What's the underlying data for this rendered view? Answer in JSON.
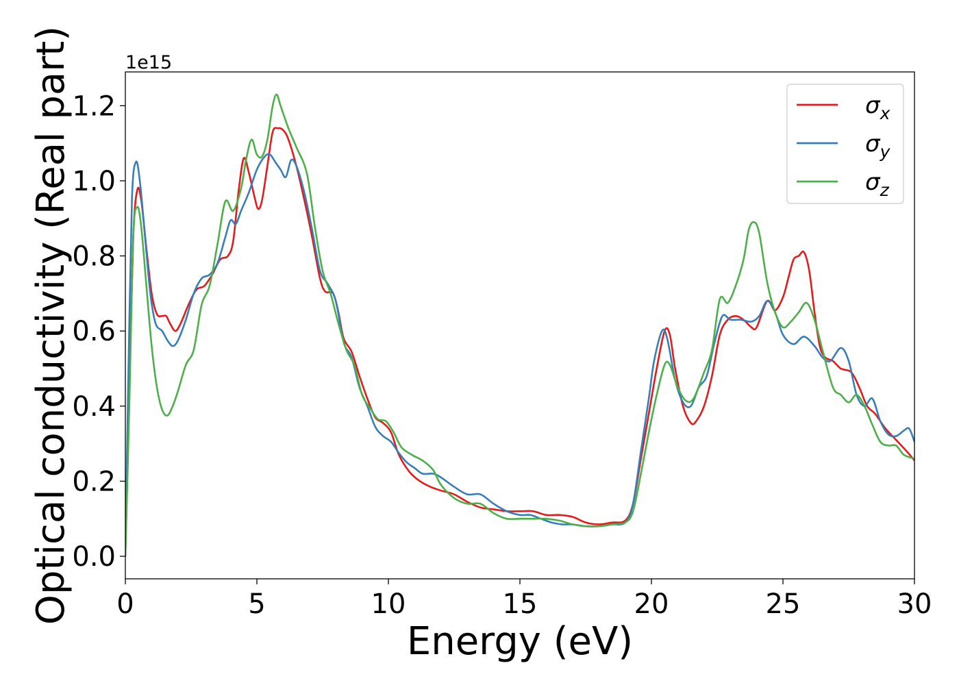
{
  "chart_data": {
    "type": "line",
    "title": "",
    "xlabel": "Energy (eV)",
    "ylabel": "Optical conductivity (Real part)",
    "y_offset_label": "1e15",
    "y_scale_factor": 1000000000000000.0,
    "xlim": [
      0,
      30
    ],
    "ylim": [
      -0.06,
      1.29
    ],
    "x_ticks": [
      "0",
      "5",
      "10",
      "15",
      "20",
      "25",
      "30"
    ],
    "y_ticks": [
      "0.0",
      "0.2",
      "0.4",
      "0.6",
      "0.8",
      "1.0",
      "1.2"
    ],
    "grid": false,
    "legend_position": "top-right",
    "series": [
      {
        "name": "σx",
        "legend_symbol": "σ",
        "legend_sub": "x",
        "color": "#e41a1c",
        "points": [
          [
            0,
            0
          ],
          [
            0.15,
            0.45
          ],
          [
            0.3,
            0.85
          ],
          [
            0.45,
            0.975
          ],
          [
            0.6,
            0.95
          ],
          [
            0.8,
            0.82
          ],
          [
            1.0,
            0.7
          ],
          [
            1.2,
            0.645
          ],
          [
            1.4,
            0.64
          ],
          [
            1.55,
            0.64
          ],
          [
            1.7,
            0.62
          ],
          [
            1.9,
            0.6
          ],
          [
            2.1,
            0.62
          ],
          [
            2.4,
            0.67
          ],
          [
            2.7,
            0.71
          ],
          [
            3.0,
            0.72
          ],
          [
            3.3,
            0.75
          ],
          [
            3.6,
            0.79
          ],
          [
            3.9,
            0.8
          ],
          [
            4.1,
            0.84
          ],
          [
            4.3,
            0.97
          ],
          [
            4.5,
            1.06
          ],
          [
            4.7,
            1.02
          ],
          [
            4.9,
            0.96
          ],
          [
            5.05,
            0.925
          ],
          [
            5.2,
            0.95
          ],
          [
            5.4,
            1.04
          ],
          [
            5.6,
            1.13
          ],
          [
            5.8,
            1.14
          ],
          [
            6.0,
            1.135
          ],
          [
            6.2,
            1.11
          ],
          [
            6.5,
            1.04
          ],
          [
            6.8,
            0.95
          ],
          [
            7.1,
            0.85
          ],
          [
            7.4,
            0.74
          ],
          [
            7.6,
            0.705
          ],
          [
            7.9,
            0.7
          ],
          [
            8.1,
            0.65
          ],
          [
            8.3,
            0.58
          ],
          [
            8.6,
            0.545
          ],
          [
            8.9,
            0.48
          ],
          [
            9.2,
            0.42
          ],
          [
            9.5,
            0.37
          ],
          [
            9.8,
            0.355
          ],
          [
            10.1,
            0.33
          ],
          [
            10.4,
            0.27
          ],
          [
            10.8,
            0.225
          ],
          [
            11.2,
            0.2
          ],
          [
            11.6,
            0.185
          ],
          [
            12.0,
            0.175
          ],
          [
            12.5,
            0.165
          ],
          [
            13.0,
            0.145
          ],
          [
            13.5,
            0.13
          ],
          [
            14.0,
            0.125
          ],
          [
            14.5,
            0.12
          ],
          [
            15.0,
            0.12
          ],
          [
            15.5,
            0.12
          ],
          [
            16.0,
            0.11
          ],
          [
            16.5,
            0.11
          ],
          [
            17.0,
            0.105
          ],
          [
            17.5,
            0.09
          ],
          [
            18.0,
            0.085
          ],
          [
            18.5,
            0.09
          ],
          [
            19.0,
            0.095
          ],
          [
            19.3,
            0.14
          ],
          [
            19.6,
            0.26
          ],
          [
            19.9,
            0.38
          ],
          [
            20.2,
            0.5
          ],
          [
            20.5,
            0.6
          ],
          [
            20.7,
            0.59
          ],
          [
            20.9,
            0.5
          ],
          [
            21.2,
            0.4
          ],
          [
            21.5,
            0.355
          ],
          [
            21.7,
            0.36
          ],
          [
            22.0,
            0.4
          ],
          [
            22.3,
            0.48
          ],
          [
            22.6,
            0.59
          ],
          [
            22.9,
            0.63
          ],
          [
            23.2,
            0.64
          ],
          [
            23.5,
            0.63
          ],
          [
            23.8,
            0.61
          ],
          [
            24.0,
            0.61
          ],
          [
            24.4,
            0.68
          ],
          [
            24.7,
            0.655
          ],
          [
            25.0,
            0.69
          ],
          [
            25.2,
            0.74
          ],
          [
            25.4,
            0.79
          ],
          [
            25.6,
            0.8
          ],
          [
            25.8,
            0.81
          ],
          [
            26.0,
            0.76
          ],
          [
            26.2,
            0.65
          ],
          [
            26.4,
            0.56
          ],
          [
            26.6,
            0.53
          ],
          [
            26.9,
            0.52
          ],
          [
            27.2,
            0.5
          ],
          [
            27.6,
            0.49
          ],
          [
            27.9,
            0.45
          ],
          [
            28.2,
            0.4
          ],
          [
            28.5,
            0.38
          ],
          [
            28.9,
            0.34
          ],
          [
            29.3,
            0.31
          ],
          [
            29.7,
            0.28
          ],
          [
            30.0,
            0.255
          ]
        ]
      },
      {
        "name": "σy",
        "legend_symbol": "σ",
        "legend_sub": "y",
        "color": "#377eb8",
        "points": [
          [
            0,
            0
          ],
          [
            0.12,
            0.5
          ],
          [
            0.25,
            0.95
          ],
          [
            0.4,
            1.05
          ],
          [
            0.55,
            1.0
          ],
          [
            0.75,
            0.85
          ],
          [
            0.95,
            0.7
          ],
          [
            1.15,
            0.62
          ],
          [
            1.4,
            0.6
          ],
          [
            1.6,
            0.575
          ],
          [
            1.8,
            0.56
          ],
          [
            2.0,
            0.575
          ],
          [
            2.3,
            0.63
          ],
          [
            2.6,
            0.7
          ],
          [
            2.9,
            0.74
          ],
          [
            3.2,
            0.75
          ],
          [
            3.5,
            0.78
          ],
          [
            3.8,
            0.85
          ],
          [
            4.0,
            0.895
          ],
          [
            4.2,
            0.885
          ],
          [
            4.4,
            0.92
          ],
          [
            4.7,
            0.97
          ],
          [
            5.0,
            1.03
          ],
          [
            5.3,
            1.065
          ],
          [
            5.5,
            1.07
          ],
          [
            5.7,
            1.05
          ],
          [
            5.9,
            1.03
          ],
          [
            6.1,
            1.01
          ],
          [
            6.3,
            1.055
          ],
          [
            6.5,
            1.04
          ],
          [
            6.8,
            0.97
          ],
          [
            7.1,
            0.87
          ],
          [
            7.4,
            0.76
          ],
          [
            7.7,
            0.725
          ],
          [
            8.0,
            0.68
          ],
          [
            8.3,
            0.57
          ],
          [
            8.6,
            0.53
          ],
          [
            8.9,
            0.45
          ],
          [
            9.2,
            0.4
          ],
          [
            9.5,
            0.345
          ],
          [
            9.8,
            0.32
          ],
          [
            10.1,
            0.305
          ],
          [
            10.4,
            0.275
          ],
          [
            10.7,
            0.25
          ],
          [
            11.0,
            0.235
          ],
          [
            11.3,
            0.22
          ],
          [
            11.7,
            0.22
          ],
          [
            12.0,
            0.21
          ],
          [
            12.5,
            0.185
          ],
          [
            13.0,
            0.165
          ],
          [
            13.5,
            0.165
          ],
          [
            14.0,
            0.14
          ],
          [
            14.5,
            0.12
          ],
          [
            15.0,
            0.11
          ],
          [
            15.4,
            0.11
          ],
          [
            15.8,
            0.1
          ],
          [
            16.2,
            0.09
          ],
          [
            16.6,
            0.085
          ],
          [
            17.0,
            0.085
          ],
          [
            17.5,
            0.08
          ],
          [
            18.0,
            0.08
          ],
          [
            18.5,
            0.085
          ],
          [
            19.0,
            0.09
          ],
          [
            19.3,
            0.14
          ],
          [
            19.6,
            0.28
          ],
          [
            19.9,
            0.42
          ],
          [
            20.1,
            0.52
          ],
          [
            20.4,
            0.6
          ],
          [
            20.6,
            0.58
          ],
          [
            20.9,
            0.47
          ],
          [
            21.2,
            0.41
          ],
          [
            21.5,
            0.4
          ],
          [
            21.8,
            0.45
          ],
          [
            22.1,
            0.48
          ],
          [
            22.4,
            0.57
          ],
          [
            22.7,
            0.64
          ],
          [
            23.0,
            0.63
          ],
          [
            23.4,
            0.63
          ],
          [
            23.8,
            0.625
          ],
          [
            24.1,
            0.64
          ],
          [
            24.4,
            0.68
          ],
          [
            24.7,
            0.65
          ],
          [
            25.0,
            0.59
          ],
          [
            25.4,
            0.565
          ],
          [
            25.8,
            0.585
          ],
          [
            26.2,
            0.56
          ],
          [
            26.5,
            0.53
          ],
          [
            26.8,
            0.52
          ],
          [
            27.2,
            0.555
          ],
          [
            27.5,
            0.52
          ],
          [
            27.8,
            0.43
          ],
          [
            28.1,
            0.4
          ],
          [
            28.4,
            0.42
          ],
          [
            28.7,
            0.36
          ],
          [
            29.0,
            0.325
          ],
          [
            29.3,
            0.32
          ],
          [
            29.6,
            0.335
          ],
          [
            29.8,
            0.34
          ],
          [
            30.0,
            0.305
          ]
        ]
      },
      {
        "name": "σz",
        "legend_symbol": "σ",
        "legend_sub": "z",
        "color": "#4daf4a",
        "points": [
          [
            0,
            0
          ],
          [
            0.15,
            0.4
          ],
          [
            0.3,
            0.85
          ],
          [
            0.45,
            0.93
          ],
          [
            0.6,
            0.88
          ],
          [
            0.8,
            0.72
          ],
          [
            1.0,
            0.56
          ],
          [
            1.2,
            0.45
          ],
          [
            1.4,
            0.39
          ],
          [
            1.6,
            0.375
          ],
          [
            1.8,
            0.4
          ],
          [
            2.0,
            0.44
          ],
          [
            2.3,
            0.51
          ],
          [
            2.6,
            0.55
          ],
          [
            2.9,
            0.67
          ],
          [
            3.2,
            0.72
          ],
          [
            3.5,
            0.83
          ],
          [
            3.8,
            0.945
          ],
          [
            4.1,
            0.92
          ],
          [
            4.4,
            0.98
          ],
          [
            4.6,
            1.06
          ],
          [
            4.8,
            1.11
          ],
          [
            5.0,
            1.07
          ],
          [
            5.2,
            1.065
          ],
          [
            5.4,
            1.11
          ],
          [
            5.6,
            1.2
          ],
          [
            5.75,
            1.23
          ],
          [
            5.9,
            1.2
          ],
          [
            6.2,
            1.14
          ],
          [
            6.5,
            1.09
          ],
          [
            6.9,
            1.02
          ],
          [
            7.2,
            0.88
          ],
          [
            7.5,
            0.76
          ],
          [
            7.8,
            0.7
          ],
          [
            8.1,
            0.62
          ],
          [
            8.4,
            0.55
          ],
          [
            8.7,
            0.51
          ],
          [
            9.0,
            0.43
          ],
          [
            9.3,
            0.395
          ],
          [
            9.6,
            0.365
          ],
          [
            9.9,
            0.36
          ],
          [
            10.2,
            0.33
          ],
          [
            10.5,
            0.29
          ],
          [
            10.9,
            0.27
          ],
          [
            11.3,
            0.255
          ],
          [
            11.7,
            0.23
          ],
          [
            12.0,
            0.19
          ],
          [
            12.5,
            0.155
          ],
          [
            13.0,
            0.14
          ],
          [
            13.5,
            0.14
          ],
          [
            14.0,
            0.115
          ],
          [
            14.5,
            0.1
          ],
          [
            15.0,
            0.1
          ],
          [
            15.5,
            0.1
          ],
          [
            16.0,
            0.1
          ],
          [
            16.5,
            0.095
          ],
          [
            17.0,
            0.085
          ],
          [
            17.5,
            0.08
          ],
          [
            18.0,
            0.08
          ],
          [
            18.5,
            0.085
          ],
          [
            19.0,
            0.09
          ],
          [
            19.3,
            0.12
          ],
          [
            19.6,
            0.22
          ],
          [
            19.9,
            0.33
          ],
          [
            20.2,
            0.43
          ],
          [
            20.5,
            0.51
          ],
          [
            20.7,
            0.51
          ],
          [
            21.0,
            0.45
          ],
          [
            21.3,
            0.415
          ],
          [
            21.6,
            0.42
          ],
          [
            22.0,
            0.49
          ],
          [
            22.3,
            0.55
          ],
          [
            22.6,
            0.685
          ],
          [
            22.9,
            0.675
          ],
          [
            23.2,
            0.72
          ],
          [
            23.5,
            0.79
          ],
          [
            23.7,
            0.87
          ],
          [
            23.9,
            0.89
          ],
          [
            24.1,
            0.86
          ],
          [
            24.4,
            0.73
          ],
          [
            24.7,
            0.65
          ],
          [
            25.0,
            0.61
          ],
          [
            25.3,
            0.625
          ],
          [
            25.6,
            0.65
          ],
          [
            25.9,
            0.675
          ],
          [
            26.2,
            0.63
          ],
          [
            26.5,
            0.55
          ],
          [
            26.9,
            0.45
          ],
          [
            27.2,
            0.43
          ],
          [
            27.5,
            0.41
          ],
          [
            27.8,
            0.43
          ],
          [
            28.1,
            0.4
          ],
          [
            28.4,
            0.35
          ],
          [
            28.7,
            0.305
          ],
          [
            29.0,
            0.295
          ],
          [
            29.3,
            0.295
          ],
          [
            29.6,
            0.27
          ],
          [
            30.0,
            0.26
          ]
        ]
      }
    ]
  }
}
